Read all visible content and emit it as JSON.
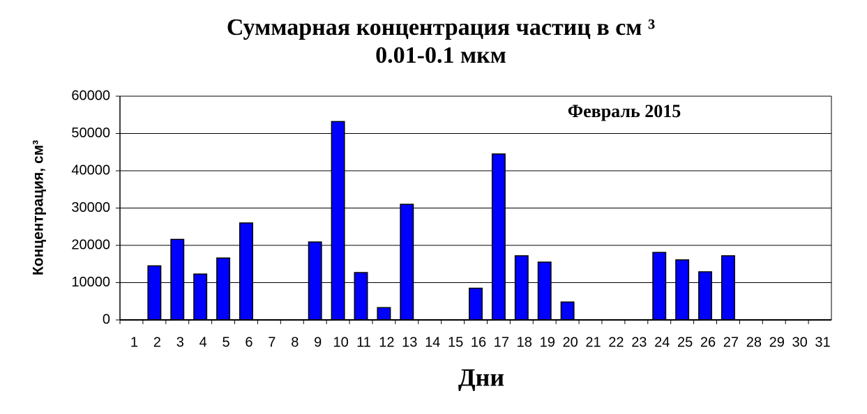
{
  "chart_data": {
    "type": "bar",
    "title": [
      "Суммарная концентрация частиц  в см ³",
      "0.01-0.1 мкм"
    ],
    "annotation": "Февраль 2015",
    "x_label": "Дни",
    "y_label": "Концентрация,  см³",
    "categories": [
      "1",
      "2",
      "3",
      "4",
      "5",
      "6",
      "7",
      "8",
      "9",
      "10",
      "11",
      "12",
      "13",
      "14",
      "15",
      "16",
      "17",
      "18",
      "19",
      "20",
      "21",
      "22",
      "23",
      "24",
      "25",
      "26",
      "27",
      "28",
      "29",
      "30",
      "31"
    ],
    "values": [
      0,
      14500,
      21600,
      12300,
      16600,
      26000,
      0,
      0,
      20900,
      53200,
      12700,
      3300,
      31000,
      0,
      0,
      8500,
      44500,
      17200,
      15500,
      4800,
      0,
      0,
      0,
      18100,
      16100,
      12900,
      17200,
      0,
      0,
      0,
      0
    ],
    "color": "#0000ff",
    "ylim": [
      0,
      60000
    ],
    "yticks": [
      0,
      10000,
      20000,
      30000,
      40000,
      50000,
      60000
    ],
    "grid": true
  }
}
